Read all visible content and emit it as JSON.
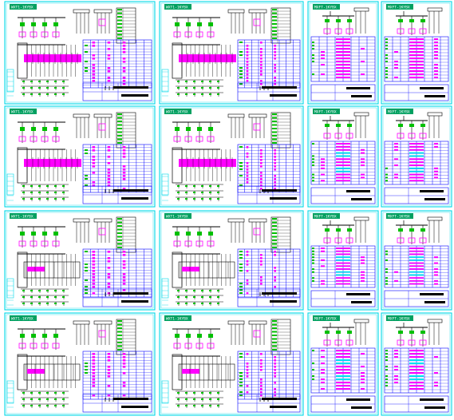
{
  "sheet_size_note": "",
  "colors": {
    "background": "#ffffff",
    "frame": "#00d8e8",
    "wire": "#0000ff",
    "conductor": "#000000",
    "highlight": "#ff00ff",
    "highlight_alt": "#00e0f0",
    "component": "#00c000",
    "badge": "#00a060"
  },
  "sheets": [
    {
      "label": "WXT1-1KYBX",
      "footer": "",
      "kind": "large-a"
    },
    {
      "label": "WXT1-1KYBX",
      "footer": "",
      "kind": "large-b"
    },
    {
      "label": "MXFT-1KYBX",
      "footer": "",
      "kind": "small"
    },
    {
      "label": "MXFT-1KYBX",
      "footer": "",
      "kind": "small"
    },
    {
      "label": "WXT1-1KYBX",
      "footer": "",
      "kind": "large-a"
    },
    {
      "label": "WXT1-1KYBX",
      "footer": "",
      "kind": "large-b"
    },
    {
      "label": "MXFT-1KYBX",
      "footer": "",
      "kind": "small-cyan"
    },
    {
      "label": "MXFT-1KYBX",
      "footer": "",
      "kind": "small-cyan"
    },
    {
      "label": "WXT1-1KYBX",
      "footer": "",
      "kind": "large-c"
    },
    {
      "label": "WXT1-1KYBX",
      "footer": "",
      "kind": "large-d"
    },
    {
      "label": "MXFT-1KYBX",
      "footer": "",
      "kind": "small-cyan"
    },
    {
      "label": "MXFT-1KYBX",
      "footer": "",
      "kind": "small-cyan"
    },
    {
      "label": "WXT1-1KYBX",
      "footer": "",
      "kind": "large-c"
    },
    {
      "label": "WXT1-1KYBX",
      "footer": "",
      "kind": "large-d"
    },
    {
      "label": "MXFT-1KYBX",
      "footer": "",
      "kind": "small-cyan"
    },
    {
      "label": "MXFT-1KYBX",
      "footer": "",
      "kind": "small-cyan"
    }
  ]
}
